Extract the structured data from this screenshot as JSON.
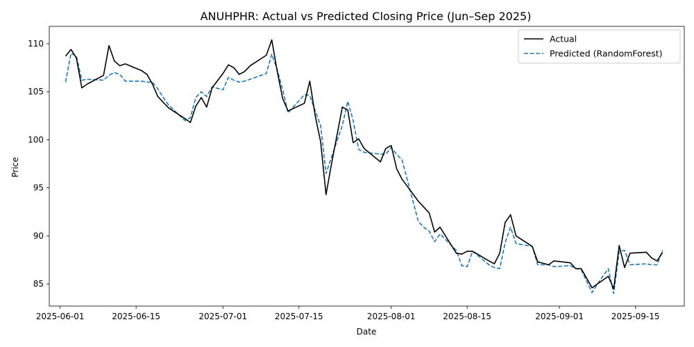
{
  "chart_data": {
    "type": "line",
    "title": "ANUHPHR: Actual vs Predicted Closing Price (Jun–Sep 2025)",
    "xlabel": "Date",
    "ylabel": "Price",
    "xlim": [
      "2025-05-30",
      "2025-09-24"
    ],
    "ylim": [
      82.7,
      111.8
    ],
    "xticks": [
      "2025-06-01",
      "2025-06-15",
      "2025-07-01",
      "2025-07-15",
      "2025-08-01",
      "2025-08-15",
      "2025-09-01",
      "2025-09-15"
    ],
    "yticks": [
      85,
      90,
      95,
      100,
      105,
      110
    ],
    "grid": false,
    "legend_position": "top-right",
    "series": [
      {
        "name": "Actual",
        "color": "#000000",
        "style": "solid",
        "points": [
          [
            "2025-06-02",
            108.7
          ],
          [
            "2025-06-03",
            109.4
          ],
          [
            "2025-06-04",
            108.5
          ],
          [
            "2025-06-05",
            105.4
          ],
          [
            "2025-06-06",
            105.8
          ],
          [
            "2025-06-09",
            106.7
          ],
          [
            "2025-06-10",
            109.8
          ],
          [
            "2025-06-11",
            108.2
          ],
          [
            "2025-06-12",
            107.7
          ],
          [
            "2025-06-13",
            107.9
          ],
          [
            "2025-06-16",
            107.2
          ],
          [
            "2025-06-17",
            106.8
          ],
          [
            "2025-06-18",
            105.8
          ],
          [
            "2025-06-19",
            104.5
          ],
          [
            "2025-06-20",
            103.9
          ],
          [
            "2025-06-21",
            103.3
          ],
          [
            "2025-06-24",
            102.2
          ],
          [
            "2025-06-25",
            101.8
          ],
          [
            "2025-06-26",
            103.5
          ],
          [
            "2025-06-27",
            104.4
          ],
          [
            "2025-06-28",
            103.4
          ],
          [
            "2025-06-29",
            105.4
          ],
          [
            "2025-07-01",
            106.9
          ],
          [
            "2025-07-02",
            107.8
          ],
          [
            "2025-07-03",
            107.5
          ],
          [
            "2025-07-04",
            106.8
          ],
          [
            "2025-07-05",
            107.1
          ],
          [
            "2025-07-06",
            107.7
          ],
          [
            "2025-07-09",
            108.8
          ],
          [
            "2025-07-10",
            110.4
          ],
          [
            "2025-07-11",
            107.1
          ],
          [
            "2025-07-12",
            104.3
          ],
          [
            "2025-07-13",
            103.0
          ],
          [
            "2025-07-16",
            103.8
          ],
          [
            "2025-07-17",
            106.1
          ],
          [
            "2025-07-18",
            102.5
          ],
          [
            "2025-07-19",
            99.8
          ],
          [
            "2025-07-20",
            94.3
          ],
          [
            "2025-07-21",
            97.5
          ],
          [
            "2025-07-23",
            103.4
          ],
          [
            "2025-07-24",
            103.1
          ],
          [
            "2025-07-25",
            99.7
          ],
          [
            "2025-07-26",
            100.1
          ],
          [
            "2025-07-27",
            99.1
          ],
          [
            "2025-07-30",
            97.7
          ],
          [
            "2025-07-31",
            99.1
          ],
          [
            "2025-08-01",
            99.4
          ],
          [
            "2025-08-02",
            97.0
          ],
          [
            "2025-08-03",
            95.9
          ],
          [
            "2025-08-06",
            93.6
          ],
          [
            "2025-08-07",
            93.0
          ],
          [
            "2025-08-08",
            92.4
          ],
          [
            "2025-08-09",
            90.4
          ],
          [
            "2025-08-10",
            90.9
          ],
          [
            "2025-08-13",
            88.2
          ],
          [
            "2025-08-14",
            88.1
          ],
          [
            "2025-08-15",
            88.4
          ],
          [
            "2025-08-16",
            88.4
          ],
          [
            "2025-08-19",
            87.4
          ],
          [
            "2025-08-20",
            87.1
          ],
          [
            "2025-08-21",
            88.2
          ],
          [
            "2025-08-22",
            91.4
          ],
          [
            "2025-08-23",
            92.2
          ],
          [
            "2025-08-24",
            90.0
          ],
          [
            "2025-08-27",
            88.9
          ],
          [
            "2025-08-28",
            87.3
          ],
          [
            "2025-08-30",
            87.0
          ],
          [
            "2025-08-31",
            87.4
          ],
          [
            "2025-09-03",
            87.2
          ],
          [
            "2025-09-04",
            86.6
          ],
          [
            "2025-09-05",
            86.6
          ],
          [
            "2025-09-07",
            84.6
          ],
          [
            "2025-09-08",
            85.0
          ],
          [
            "2025-09-09",
            85.4
          ],
          [
            "2025-09-10",
            85.8
          ],
          [
            "2025-09-11",
            84.5
          ],
          [
            "2025-09-12",
            89.0
          ],
          [
            "2025-09-13",
            86.7
          ],
          [
            "2025-09-14",
            88.2
          ],
          [
            "2025-09-17",
            88.3
          ],
          [
            "2025-09-18",
            87.7
          ],
          [
            "2025-09-19",
            87.4
          ],
          [
            "2025-09-20",
            88.3
          ]
        ]
      },
      {
        "name": "Predicted (RandomForest)",
        "color": "#1f77b4",
        "style": "dashed",
        "points": [
          [
            "2025-06-02",
            106.0
          ],
          [
            "2025-06-03",
            109.0
          ],
          [
            "2025-06-04",
            108.7
          ],
          [
            "2025-06-05",
            106.2
          ],
          [
            "2025-06-06",
            106.3
          ],
          [
            "2025-06-09",
            106.2
          ],
          [
            "2025-06-10",
            106.7
          ],
          [
            "2025-06-11",
            107.0
          ],
          [
            "2025-06-12",
            106.8
          ],
          [
            "2025-06-13",
            106.1
          ],
          [
            "2025-06-16",
            106.1
          ],
          [
            "2025-06-17",
            106.0
          ],
          [
            "2025-06-18",
            106.0
          ],
          [
            "2025-06-19",
            105.3
          ],
          [
            "2025-06-20",
            104.4
          ],
          [
            "2025-06-21",
            103.6
          ],
          [
            "2025-06-24",
            102.0
          ],
          [
            "2025-06-25",
            102.3
          ],
          [
            "2025-06-26",
            104.4
          ],
          [
            "2025-06-27",
            105.0
          ],
          [
            "2025-06-28",
            104.5
          ],
          [
            "2025-06-29",
            105.5
          ],
          [
            "2025-07-01",
            105.2
          ],
          [
            "2025-07-02",
            106.5
          ],
          [
            "2025-07-03",
            106.2
          ],
          [
            "2025-07-04",
            106.0
          ],
          [
            "2025-07-05",
            106.1
          ],
          [
            "2025-07-06",
            106.3
          ],
          [
            "2025-07-09",
            106.9
          ],
          [
            "2025-07-10",
            108.9
          ],
          [
            "2025-07-11",
            107.3
          ],
          [
            "2025-07-12",
            105.2
          ],
          [
            "2025-07-13",
            102.8
          ],
          [
            "2025-07-16",
            104.7
          ],
          [
            "2025-07-17",
            104.6
          ],
          [
            "2025-07-18",
            103.0
          ],
          [
            "2025-07-19",
            101.5
          ],
          [
            "2025-07-20",
            96.5
          ],
          [
            "2025-07-21",
            98.2
          ],
          [
            "2025-07-23",
            101.5
          ],
          [
            "2025-07-24",
            104.0
          ],
          [
            "2025-07-25",
            102.0
          ],
          [
            "2025-07-26",
            99.0
          ],
          [
            "2025-07-27",
            98.7
          ],
          [
            "2025-07-30",
            98.5
          ],
          [
            "2025-07-31",
            98.5
          ],
          [
            "2025-08-01",
            99.2
          ],
          [
            "2025-08-02",
            98.5
          ],
          [
            "2025-08-03",
            97.9
          ],
          [
            "2025-08-06",
            91.5
          ],
          [
            "2025-08-07",
            90.9
          ],
          [
            "2025-08-08",
            90.5
          ],
          [
            "2025-08-09",
            89.4
          ],
          [
            "2025-08-10",
            90.2
          ],
          [
            "2025-08-13",
            88.5
          ],
          [
            "2025-08-14",
            86.9
          ],
          [
            "2025-08-15",
            86.8
          ],
          [
            "2025-08-16",
            88.4
          ],
          [
            "2025-08-19",
            87.0
          ],
          [
            "2025-08-20",
            86.7
          ],
          [
            "2025-08-21",
            86.6
          ],
          [
            "2025-08-22",
            89.3
          ],
          [
            "2025-08-23",
            90.9
          ],
          [
            "2025-08-24",
            89.2
          ],
          [
            "2025-08-27",
            88.9
          ],
          [
            "2025-08-28",
            87.0
          ],
          [
            "2025-08-30",
            87.0
          ],
          [
            "2025-08-31",
            86.8
          ],
          [
            "2025-09-03",
            86.9
          ],
          [
            "2025-09-04",
            86.6
          ],
          [
            "2025-09-05",
            86.5
          ],
          [
            "2025-09-07",
            84.1
          ],
          [
            "2025-09-08",
            85.0
          ],
          [
            "2025-09-09",
            85.8
          ],
          [
            "2025-09-10",
            86.6
          ],
          [
            "2025-09-11",
            84.0
          ],
          [
            "2025-09-12",
            88.4
          ],
          [
            "2025-09-13",
            88.5
          ],
          [
            "2025-09-14",
            87.0
          ],
          [
            "2025-09-17",
            87.1
          ],
          [
            "2025-09-18",
            87.0
          ],
          [
            "2025-09-19",
            87.0
          ],
          [
            "2025-09-20",
            88.5
          ]
        ]
      }
    ]
  }
}
